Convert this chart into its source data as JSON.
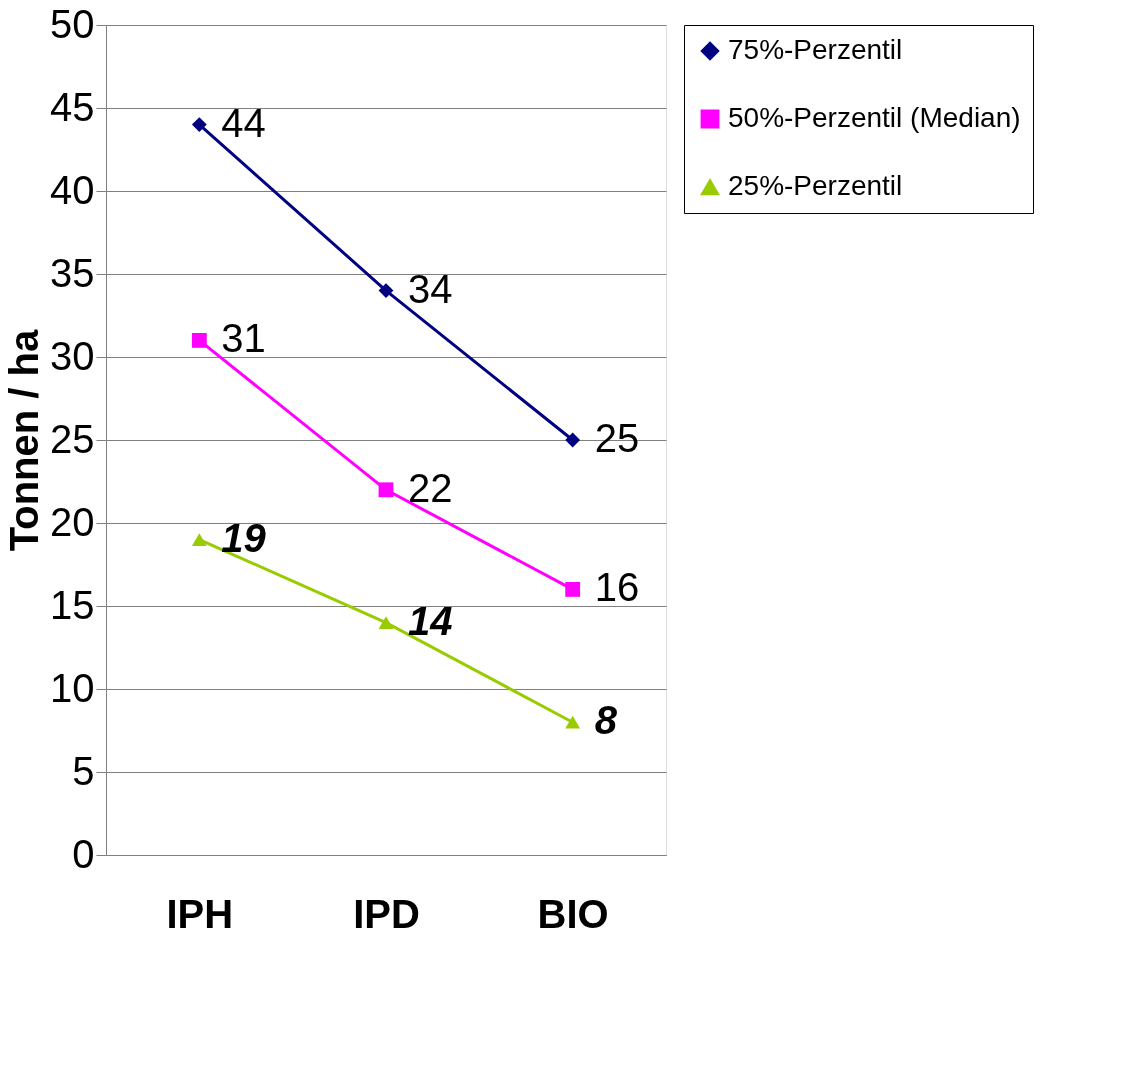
{
  "chart_data": {
    "type": "line",
    "ylabel": "Tonnen / ha",
    "categories": [
      "IPH",
      "IPD",
      "BIO"
    ],
    "series": [
      {
        "name": "75%-Perzentil",
        "color": "#000080",
        "values": [
          44,
          34,
          25
        ],
        "marker": "diamond"
      },
      {
        "name": "50%-Perzentil (Median)",
        "color": "#ff00ff",
        "values": [
          31,
          22,
          16
        ],
        "marker": "square"
      },
      {
        "name": "25%-Perzentil",
        "color": "#99cc00",
        "values": [
          19,
          14,
          8
        ],
        "marker": "triangle"
      }
    ],
    "ylim": [
      0,
      50
    ],
    "yticks": [
      0,
      5,
      10,
      15,
      20,
      25,
      30,
      35,
      40,
      45,
      50
    ],
    "grid": "y",
    "legend": "right",
    "data_labels": true,
    "line_style": "solid"
  }
}
